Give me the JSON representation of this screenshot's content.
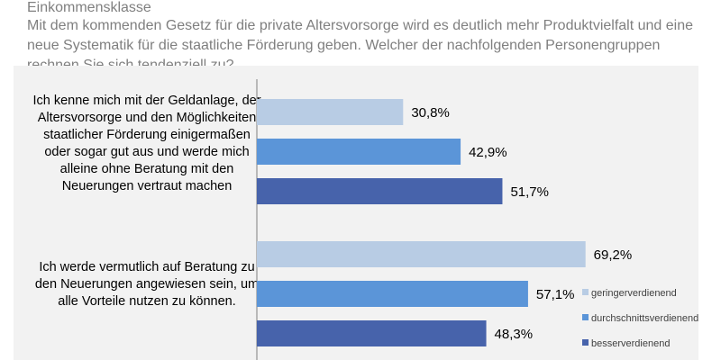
{
  "header": {
    "top_cut": "Einkommensklasse",
    "question": "Mit dem kommenden Gesetz für die private Altersvorsorge wird es deutlich mehr Produktvielfalt und eine neue Systematik für die staatliche Förderung geben. Welcher der nachfolgenden Personengruppen rechnen Sie sich tendenziell zu?"
  },
  "chart_data": {
    "type": "bar",
    "orientation": "horizontal",
    "categories": [
      "Ich kenne mich mit der Geldanlage, der Altersvorsorge und den Möglichkeiten staatlicher Förderung einigermaßen oder sogar gut aus und werde mich alleine ohne Beratung mit den Neuerungen vertraut machen",
      "Ich werde vermutlich auf Beratung zu den Neuerungen angewiesen sein, um alle Vorteile nutzen zu können."
    ],
    "series": [
      {
        "name": "geringerverdienend",
        "color": "#b8cce4",
        "values": [
          30.8,
          69.2
        ],
        "labels": [
          "30,8%",
          "69,2%"
        ]
      },
      {
        "name": "durchschnittsverdienend",
        "color": "#5b95d8",
        "values": [
          42.9,
          57.1
        ],
        "labels": [
          "42,9%",
          "57,1%"
        ]
      },
      {
        "name": "besserverdienend",
        "color": "#4763ab",
        "values": [
          51.7,
          48.3
        ],
        "labels": [
          "51,7%",
          "48,3%"
        ]
      }
    ],
    "xlim": [
      0,
      100
    ],
    "grid": false,
    "legend": "right"
  }
}
